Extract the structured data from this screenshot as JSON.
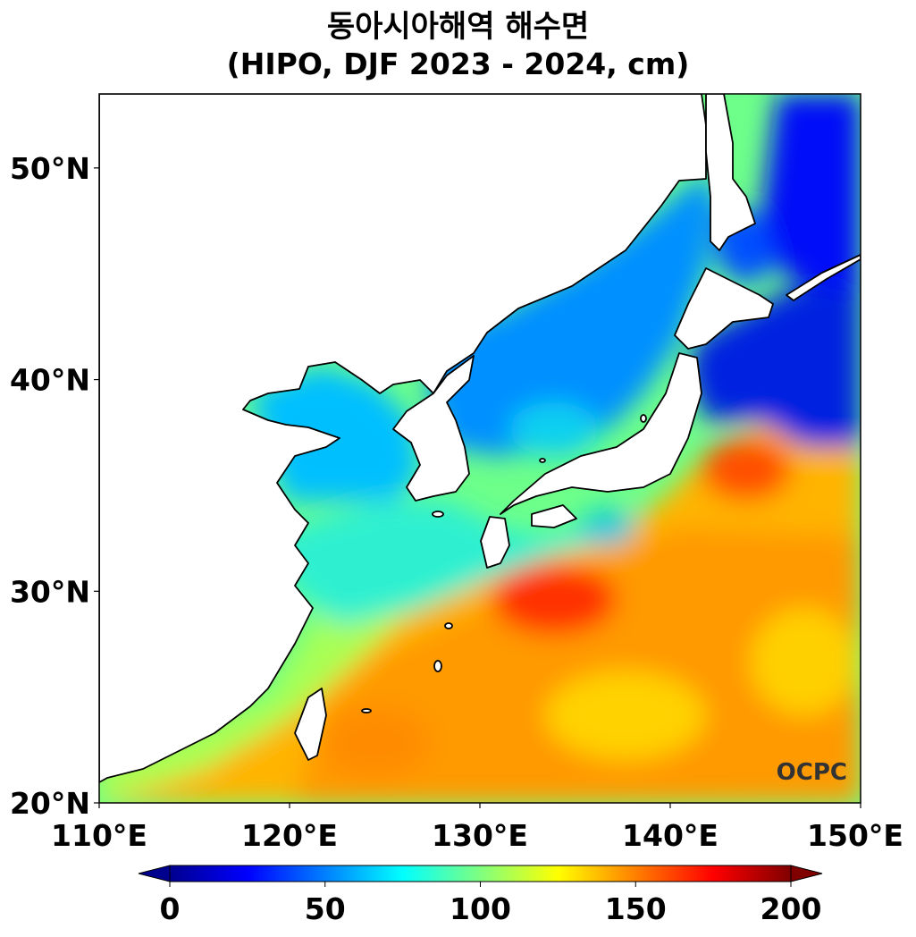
{
  "title": "동아시아해역 해수면",
  "subtitle": "(HIPO, DJF 2023 - 2024, cm)",
  "logo_text": "OCPC",
  "map": {
    "lon_range": [
      110,
      150
    ],
    "lat_range": [
      20,
      53.5
    ],
    "lon_ticks": [
      {
        "value": 110,
        "label": "110°E"
      },
      {
        "value": 120,
        "label": "120°E"
      },
      {
        "value": 130,
        "label": "130°E"
      },
      {
        "value": 140,
        "label": "140°E"
      },
      {
        "value": 150,
        "label": "150°E"
      }
    ],
    "lat_ticks": [
      {
        "value": 20,
        "label": "20°N"
      },
      {
        "value": 30,
        "label": "30°N"
      },
      {
        "value": 40,
        "label": "40°N"
      },
      {
        "value": 50,
        "label": "50°N"
      }
    ]
  },
  "colorbar": {
    "min": 0,
    "max": 200,
    "extend": "both",
    "colormap": "jet",
    "ticks": [
      {
        "value": 0,
        "label": "0"
      },
      {
        "value": 50,
        "label": "50"
      },
      {
        "value": 100,
        "label": "100"
      },
      {
        "value": 150,
        "label": "150"
      },
      {
        "value": 200,
        "label": "200"
      }
    ]
  },
  "colors": {
    "land": "#ffffff",
    "coastline": "#000000",
    "low": "#00008f",
    "high": "#800000"
  }
}
